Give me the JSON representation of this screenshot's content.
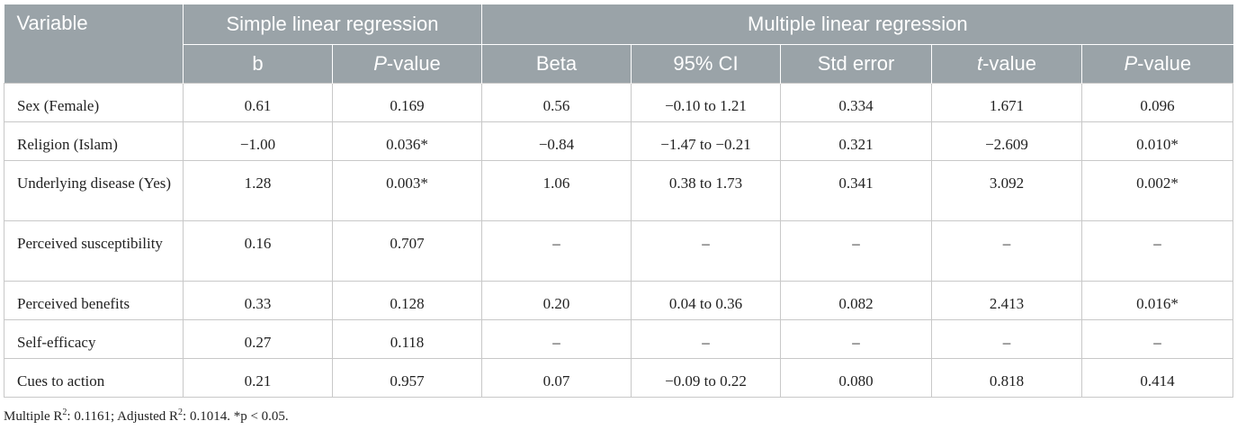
{
  "header": {
    "variable": "Variable",
    "simple": "Simple linear regression",
    "multiple": "Multiple linear regression",
    "sub": {
      "b": "b",
      "p_simple_italic": "P",
      "p_simple_rest": "-value",
      "beta": "Beta",
      "ci": "95% CI",
      "se": "Std error",
      "t_italic": "t",
      "t_rest": "-value",
      "p_multi_italic": "P",
      "p_multi_rest": "-value"
    }
  },
  "rows": [
    {
      "variable": "Sex (Female)",
      "b": "0.61",
      "p_simple": "0.169",
      "beta": "0.56",
      "ci": "−0.10 to 1.21",
      "se": "0.334",
      "t": "1.671",
      "p_multi": "0.096"
    },
    {
      "variable": "Religion (Islam)",
      "b": "−1.00",
      "p_simple": "0.036*",
      "beta": "−0.84",
      "ci": "−1.47 to −0.21",
      "se": "0.321",
      "t": "−2.609",
      "p_multi": "0.010*"
    },
    {
      "variable": "Underlying disease (Yes)",
      "b": "1.28",
      "p_simple": "0.003*",
      "beta": "1.06",
      "ci": "0.38 to 1.73",
      "se": "0.341",
      "t": "3.092",
      "p_multi": "0.002*"
    },
    {
      "variable": "Perceived susceptibility",
      "b": "0.16",
      "p_simple": "0.707",
      "beta": "–",
      "ci": "–",
      "se": "–",
      "t": "–",
      "p_multi": "–"
    },
    {
      "variable": "Perceived benefits",
      "b": "0.33",
      "p_simple": "0.128",
      "beta": "0.20",
      "ci": "0.04 to 0.36",
      "se": "0.082",
      "t": "2.413",
      "p_multi": "0.016*"
    },
    {
      "variable": "Self-efficacy",
      "b": "0.27",
      "p_simple": "0.118",
      "beta": "–",
      "ci": "–",
      "se": "–",
      "t": "–",
      "p_multi": "–"
    },
    {
      "variable": "Cues to action",
      "b": "0.21",
      "p_simple": "0.957",
      "beta": "0.07",
      "ci": "−0.09 to 0.22",
      "se": "0.080",
      "t": "0.818",
      "p_multi": "0.414"
    }
  ],
  "footnote": {
    "part1": "Multiple R",
    "sup1": "2",
    "part2": ": 0.1161; Adjusted R",
    "sup2": "2",
    "part3": ": 0.1014. *p < 0.05."
  }
}
